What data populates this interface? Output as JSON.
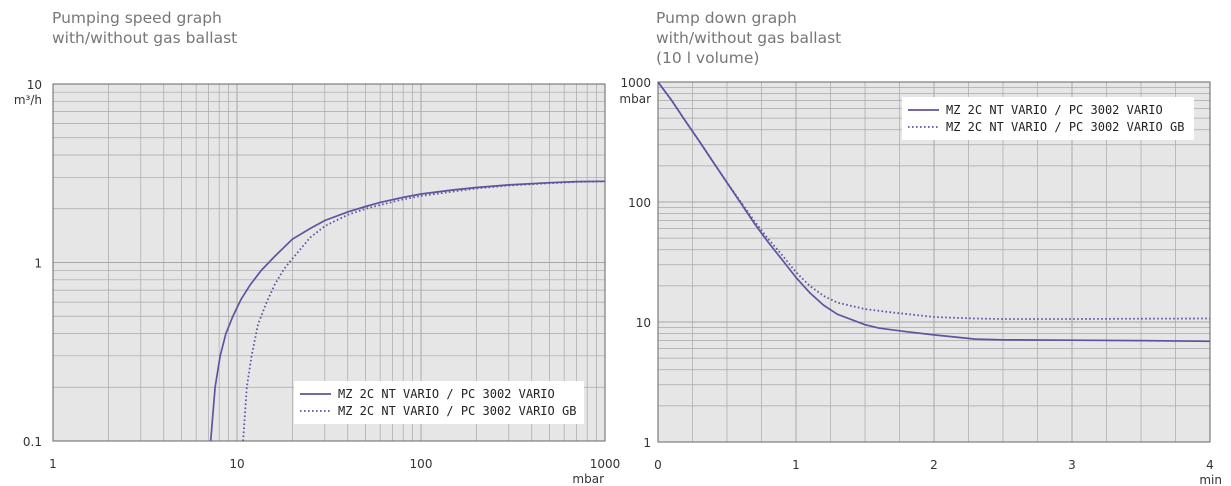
{
  "chart_data": [
    {
      "type": "line",
      "title": "Pumping speed graph\nwith/without gas ballast",
      "x_scale": "log",
      "y_scale": "log",
      "xlim": [
        1,
        1000
      ],
      "ylim": [
        0.1,
        10
      ],
      "x_ticks": [
        "1",
        "10",
        "100",
        "1000"
      ],
      "y_ticks": [
        "0.1",
        "1",
        "10"
      ],
      "x_unit": "mbar",
      "y_unit": "m³/h",
      "grid": true,
      "legend_position": "bottom-right",
      "colors": {
        "series": "#5b55a0",
        "plot_bg": "#e6e6e6",
        "grid": "#a8a8a8"
      },
      "series": [
        {
          "name": "MZ 2C NT VARIO / PC 3002 VARIO",
          "style": "solid",
          "x": [
            7.2,
            7.6,
            8.1,
            8.7,
            9.5,
            10.5,
            11.8,
            13.5,
            16,
            20,
            25,
            30,
            40,
            50,
            60,
            80,
            100,
            150,
            200,
            300,
            500,
            700,
            1000
          ],
          "y": [
            0.1,
            0.2,
            0.3,
            0.4,
            0.5,
            0.62,
            0.75,
            0.9,
            1.08,
            1.35,
            1.55,
            1.72,
            1.92,
            2.06,
            2.17,
            2.32,
            2.42,
            2.55,
            2.63,
            2.72,
            2.8,
            2.84,
            2.85
          ]
        },
        {
          "name": "MZ 2C NT VARIO / PC 3002 VARIO GB",
          "style": "dotted",
          "x": [
            10.8,
            11.3,
            12,
            13,
            14.5,
            16,
            18,
            20,
            25,
            30,
            40,
            50,
            60,
            80,
            100,
            150,
            200,
            300,
            500,
            700,
            1000
          ],
          "y": [
            0.1,
            0.2,
            0.3,
            0.45,
            0.6,
            0.75,
            0.92,
            1.05,
            1.38,
            1.6,
            1.85,
            2.0,
            2.1,
            2.26,
            2.36,
            2.5,
            2.6,
            2.7,
            2.78,
            2.83,
            2.85
          ]
        }
      ]
    },
    {
      "type": "line",
      "title": "Pump down graph\nwith/without gas ballast\n(10 l volume)",
      "x_scale": "linear",
      "y_scale": "log",
      "xlim": [
        0,
        4
      ],
      "ylim": [
        1,
        1000
      ],
      "x_ticks": [
        "0",
        "1",
        "2",
        "3",
        "4"
      ],
      "y_ticks": [
        "1",
        "10",
        "100",
        "1000"
      ],
      "x_unit": "min",
      "y_unit": "mbar",
      "grid": true,
      "legend_position": "top-right",
      "colors": {
        "series": "#5b55a0",
        "plot_bg": "#e6e6e6",
        "grid": "#a8a8a8"
      },
      "series": [
        {
          "name": "MZ 2C NT VARIO / PC 3002 VARIO",
          "style": "solid",
          "x": [
            0,
            0.1,
            0.2,
            0.3,
            0.4,
            0.5,
            0.6,
            0.7,
            0.8,
            0.9,
            1.0,
            1.1,
            1.2,
            1.3,
            1.5,
            1.6,
            1.8,
            2.0,
            2.3,
            2.5,
            3.0,
            3.5,
            4.0
          ],
          "y": [
            1000,
            700,
            470,
            320,
            215,
            145,
            98,
            66,
            46,
            33,
            23.5,
            17.5,
            13.8,
            11.6,
            9.5,
            8.9,
            8.3,
            7.8,
            7.2,
            7.1,
            7.05,
            7.0,
            6.9
          ]
        },
        {
          "name": "MZ 2C NT VARIO / PC 3002 VARIO GB",
          "style": "dotted",
          "x": [
            0,
            0.1,
            0.2,
            0.3,
            0.4,
            0.5,
            0.6,
            0.7,
            0.8,
            0.9,
            1.0,
            1.1,
            1.2,
            1.3,
            1.5,
            1.7,
            2.0,
            2.3,
            2.5,
            3.0,
            3.5,
            4.0
          ],
          "y": [
            1000,
            700,
            470,
            320,
            215,
            145,
            100,
            69,
            49,
            36,
            26,
            20,
            16.5,
            14.5,
            12.8,
            12.0,
            11.0,
            10.7,
            10.6,
            10.6,
            10.65,
            10.7
          ]
        }
      ]
    }
  ]
}
